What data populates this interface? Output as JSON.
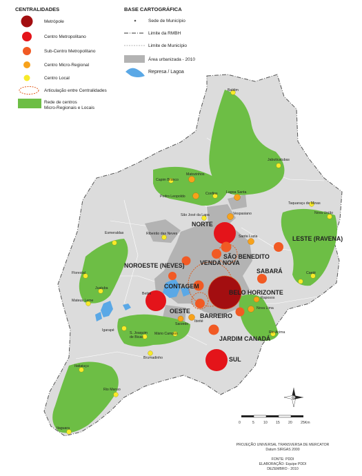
{
  "legend_centralities": {
    "title": "CENTRALIDADES",
    "items": [
      {
        "label": "Metrópole",
        "color": "#a30e10"
      },
      {
        "label": "Centro Metropolitano",
        "color": "#e4141a"
      },
      {
        "label": "Sub-Centro Metropolitano",
        "color": "#f15a24"
      },
      {
        "label": "Centro Micro-Regional",
        "color": "#f7a21b"
      },
      {
        "label": "Centro Local",
        "color": "#f7ea2a"
      },
      {
        "label": "Articulação entre Centralidades",
        "color": "#e05a1a"
      },
      {
        "label": "Rede de centros\nMicro-Regionais e Locais",
        "color": "#6dbe45"
      }
    ]
  },
  "legend_base": {
    "title": "BASE CARTOGRÁFICA",
    "items": [
      {
        "label": "Sede de Município"
      },
      {
        "label": "Limite da RMBH"
      },
      {
        "label": "Limite de Município"
      },
      {
        "label": "Área urbanizada - 2010"
      },
      {
        "label": "Represa / Lagoa"
      }
    ]
  },
  "colors": {
    "region_fill": "#dcdcdc",
    "urban": "#b3b3b3",
    "green_network": "#6dbe45",
    "water": "#5aa8e6"
  },
  "places": [
    {
      "name": "Baldim"
    },
    {
      "name": "Jabuticatubas"
    },
    {
      "name": "Matozinhos"
    },
    {
      "name": "Capim Branco"
    },
    {
      "name": "Pedro Leopoldo"
    },
    {
      "name": "Confins"
    },
    {
      "name": "Lagoa Santa"
    },
    {
      "name": "São José da Lapa"
    },
    {
      "name": "Vespasiano"
    },
    {
      "name": "Taquaraçu de Minas"
    },
    {
      "name": "Nova União"
    },
    {
      "name": "Esmeraldas"
    },
    {
      "name": "Ribeirão das Neves"
    },
    {
      "name": "Santa Luzia"
    },
    {
      "name": "Caeté"
    },
    {
      "name": "Florestal"
    },
    {
      "name": "Juatuba"
    },
    {
      "name": "Mateus Leme"
    },
    {
      "name": "Betim"
    },
    {
      "name": "Raposos"
    },
    {
      "name": "Nova Lima"
    },
    {
      "name": "Sarzedo"
    },
    {
      "name": "Ibirité"
    },
    {
      "name": "Igarapé"
    },
    {
      "name": "S. Joaquim\nde Bicas"
    },
    {
      "name": "Mário Campos"
    },
    {
      "name": "Rio Acima"
    },
    {
      "name": "Brumadinho"
    },
    {
      "name": "Itatiaiuçu"
    },
    {
      "name": "Rio Manso"
    },
    {
      "name": "Itaguara"
    }
  ],
  "regions": [
    {
      "name": "NORTE"
    },
    {
      "name": "SÃO BENEDITO"
    },
    {
      "name": "LESTE (RAVENA)"
    },
    {
      "name": "NOROESTE (NEVES)"
    },
    {
      "name": "VENDA NOVA"
    },
    {
      "name": "SABARÁ"
    },
    {
      "name": "CONTAGEM"
    },
    {
      "name": "BELO HORIZONTE"
    },
    {
      "name": "OESTE"
    },
    {
      "name": "BARREIRO"
    },
    {
      "name": "JARDIM CANADÁ"
    },
    {
      "name": "SUL"
    }
  ],
  "scale_bar": {
    "ticks": [
      "0",
      "5",
      "10",
      "15",
      "20",
      "25Km"
    ]
  },
  "footer": {
    "projection": "PROJEÇÃO UNIVERSAL TRANSVERSA DE MERCATOR",
    "datum": "Datum SIRGAS 2000",
    "source": "FONTE: PDDI",
    "elaboration": "ELABORAÇÃO: Equipe PDDI",
    "date": "DEZEMBRO - 2010"
  }
}
